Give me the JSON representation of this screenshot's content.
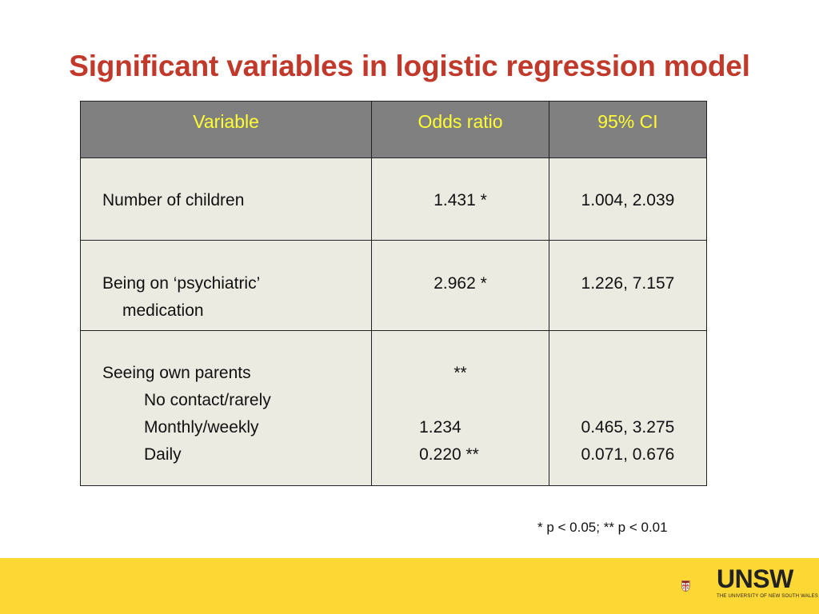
{
  "title": "Significant variables in logistic regression model",
  "table": {
    "headers": [
      "Variable",
      "Odds ratio",
      "95% CI"
    ],
    "rows": [
      {
        "variable": [
          "Number of children"
        ],
        "odds": [
          "1.431 *"
        ],
        "ci": [
          "1.004, 2.039"
        ]
      },
      {
        "variable": [
          "Being on ‘psychiatric’",
          "medication"
        ],
        "odds": [
          "2.962 *"
        ],
        "ci": [
          "1.226, 7.157"
        ]
      },
      {
        "variable": [
          "Seeing own parents",
          "No contact/rarely",
          "Monthly/weekly",
          "Daily"
        ],
        "odds": [
          "**",
          "",
          "1.234",
          "0.220 **"
        ],
        "ci": [
          "",
          "",
          "0.465, 3.275",
          "0.071, 0.676"
        ]
      }
    ]
  },
  "footnote": "* p < 0.05; ** p < 0.01",
  "logo": {
    "name": "UNSW",
    "subtitle": "THE UNIVERSITY OF NEW SOUTH WALES",
    "icon": "unsw-crest-icon"
  },
  "colors": {
    "title": "#c0392b",
    "header_bg": "#808080",
    "header_text": "#ffff33",
    "cell_bg": "#ecebe2",
    "footer_band": "#fdd835"
  }
}
